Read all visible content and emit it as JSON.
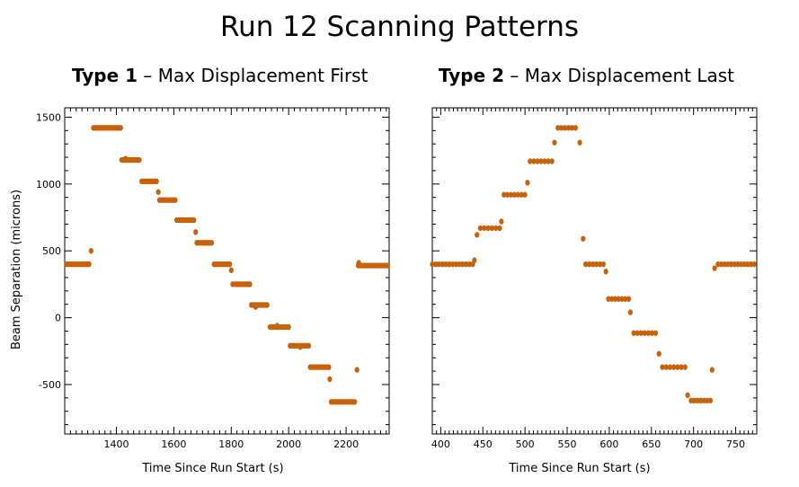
{
  "title": "Run 12 Scanning Patterns",
  "chart_data": [
    {
      "type": "scatter",
      "subtitle_bold": "Type 1",
      "subtitle_rest": " – Max Displacement First",
      "xlabel": "Time Since Run Start (s)",
      "ylabel": "Beam Separation (microns)",
      "xlim": [
        1220,
        2350
      ],
      "ylim": [
        -870,
        1570
      ],
      "xticks": [
        1400,
        1600,
        1800,
        2000,
        2200
      ],
      "yticks": [
        -500,
        0,
        500,
        1000,
        1500
      ],
      "show_x_tick_labels": true,
      "show_y_tick_labels": true,
      "marker_color": "#c8620a",
      "steps": [
        {
          "y": 400,
          "x0": 1225,
          "x1": 1305,
          "n": 13
        },
        {
          "y": 500,
          "x0": 1312,
          "x1": 1312,
          "n": 1
        },
        {
          "y": 1420,
          "x0": 1320,
          "x1": 1415,
          "n": 17
        },
        {
          "y": 1180,
          "x0": 1418,
          "x1": 1480,
          "n": 11
        },
        {
          "y": 1190,
          "x0": 1432,
          "x1": 1450,
          "n": 1
        },
        {
          "y": 1020,
          "x0": 1488,
          "x1": 1540,
          "n": 10
        },
        {
          "y": 940,
          "x0": 1546,
          "x1": 1546,
          "n": 1
        },
        {
          "y": 880,
          "x0": 1550,
          "x1": 1605,
          "n": 10
        },
        {
          "y": 730,
          "x0": 1610,
          "x1": 1670,
          "n": 10
        },
        {
          "y": 640,
          "x0": 1676,
          "x1": 1676,
          "n": 1
        },
        {
          "y": 560,
          "x0": 1680,
          "x1": 1732,
          "n": 10
        },
        {
          "y": 400,
          "x0": 1740,
          "x1": 1795,
          "n": 10
        },
        {
          "y": 355,
          "x0": 1800,
          "x1": 1800,
          "n": 1
        },
        {
          "y": 250,
          "x0": 1805,
          "x1": 1865,
          "n": 10
        },
        {
          "y": 95,
          "x0": 1870,
          "x1": 1925,
          "n": 10
        },
        {
          "y": 80,
          "x0": 1885,
          "x1": 1900,
          "n": 1
        },
        {
          "y": -70,
          "x0": 1935,
          "x1": 2000,
          "n": 10
        },
        {
          "y": -60,
          "x0": 1960,
          "x1": 1970,
          "n": 1
        },
        {
          "y": -210,
          "x0": 2005,
          "x1": 2070,
          "n": 10
        },
        {
          "y": -220,
          "x0": 2040,
          "x1": 2050,
          "n": 1
        },
        {
          "y": -370,
          "x0": 2075,
          "x1": 2140,
          "n": 10
        },
        {
          "y": -460,
          "x0": 2143,
          "x1": 2143,
          "n": 1
        },
        {
          "y": -630,
          "x0": 2148,
          "x1": 2230,
          "n": 14
        },
        {
          "y": -390,
          "x0": 2238,
          "x1": 2238,
          "n": 1
        },
        {
          "y": 390,
          "x0": 2242,
          "x1": 2345,
          "n": 17
        },
        {
          "y": 410,
          "x0": 2244,
          "x1": 2250,
          "n": 1
        }
      ]
    },
    {
      "type": "scatter",
      "subtitle_bold": "Type 2",
      "subtitle_rest": " – Max Displacement Last",
      "xlabel": "Time Since Run Start (s)",
      "ylabel": "",
      "xlim": [
        390,
        775
      ],
      "ylim": [
        -870,
        1570
      ],
      "xticks": [
        400,
        450,
        500,
        550,
        600,
        650,
        700,
        750
      ],
      "yticks": [
        -500,
        0,
        500,
        1000,
        1500
      ],
      "show_x_tick_labels": true,
      "show_y_tick_labels": false,
      "marker_color": "#c8620a",
      "steps": [
        {
          "y": 400,
          "x0": 390,
          "x1": 438,
          "n": 13
        },
        {
          "y": 430,
          "x0": 440,
          "x1": 440,
          "n": 1
        },
        {
          "y": 620,
          "x0": 443,
          "x1": 443,
          "n": 1
        },
        {
          "y": 670,
          "x0": 447,
          "x1": 470,
          "n": 6
        },
        {
          "y": 720,
          "x0": 472,
          "x1": 472,
          "n": 1
        },
        {
          "y": 920,
          "x0": 475,
          "x1": 500,
          "n": 7
        },
        {
          "y": 1010,
          "x0": 503,
          "x1": 503,
          "n": 1
        },
        {
          "y": 1170,
          "x0": 506,
          "x1": 532,
          "n": 7
        },
        {
          "y": 1310,
          "x0": 535,
          "x1": 535,
          "n": 1
        },
        {
          "y": 1420,
          "x0": 539,
          "x1": 560,
          "n": 6
        },
        {
          "y": 1310,
          "x0": 565,
          "x1": 565,
          "n": 1
        },
        {
          "y": 590,
          "x0": 569,
          "x1": 569,
          "n": 1
        },
        {
          "y": 400,
          "x0": 572,
          "x1": 593,
          "n": 6
        },
        {
          "y": 345,
          "x0": 596,
          "x1": 596,
          "n": 1
        },
        {
          "y": 140,
          "x0": 599,
          "x1": 623,
          "n": 7
        },
        {
          "y": 40,
          "x0": 625,
          "x1": 625,
          "n": 1
        },
        {
          "y": -115,
          "x0": 629,
          "x1": 655,
          "n": 7
        },
        {
          "y": -270,
          "x0": 659,
          "x1": 659,
          "n": 1
        },
        {
          "y": -370,
          "x0": 663,
          "x1": 690,
          "n": 7
        },
        {
          "y": -580,
          "x0": 693,
          "x1": 693,
          "n": 1
        },
        {
          "y": -620,
          "x0": 697,
          "x1": 720,
          "n": 7
        },
        {
          "y": -390,
          "x0": 722,
          "x1": 722,
          "n": 1
        },
        {
          "y": 370,
          "x0": 725,
          "x1": 725,
          "n": 1
        },
        {
          "y": 400,
          "x0": 729,
          "x1": 772,
          "n": 12
        }
      ]
    }
  ]
}
